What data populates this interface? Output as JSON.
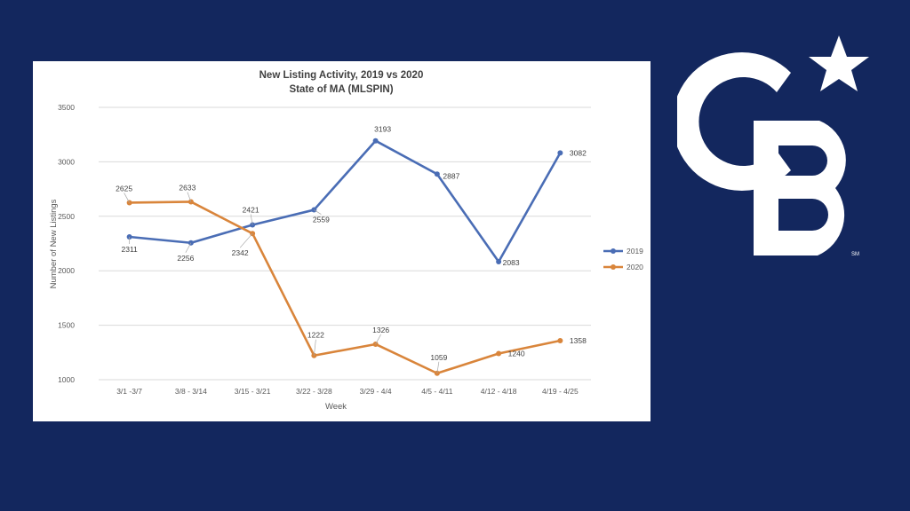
{
  "chart_data": {
    "type": "line",
    "title": "New Listing Activity, 2019 vs 2020",
    "subtitle": "State of MA (MLSPIN)",
    "xlabel": "Week",
    "ylabel": "Number of New Listings",
    "categories": [
      "3/1 -3/7",
      "3/8 - 3/14",
      "3/15 - 3/21",
      "3/22 - 3/28",
      "3/29 - 4/4",
      "4/5 - 4/11",
      "4/12 - 4/18",
      "4/19 - 4/25"
    ],
    "ylim": [
      1000,
      3500
    ],
    "yticks": [
      1000,
      1500,
      2000,
      2500,
      3000,
      3500
    ],
    "grid": true,
    "legend_position": "right",
    "series": [
      {
        "name": "2019",
        "color": "#4a6db5",
        "values": [
          2311,
          2256,
          2421,
          2559,
          3193,
          2887,
          2083,
          3082
        ]
      },
      {
        "name": "2020",
        "color": "#d9853b",
        "values": [
          2625,
          2633,
          2342,
          1222,
          1326,
          1059,
          1240,
          1358
        ]
      }
    ]
  },
  "logo": {
    "name": "coldwell-banker-cb-logo",
    "text": "CB",
    "mark": "SM",
    "color": "#ffffff"
  },
  "theme": {
    "background": "#13275e",
    "panel": "#ffffff"
  }
}
